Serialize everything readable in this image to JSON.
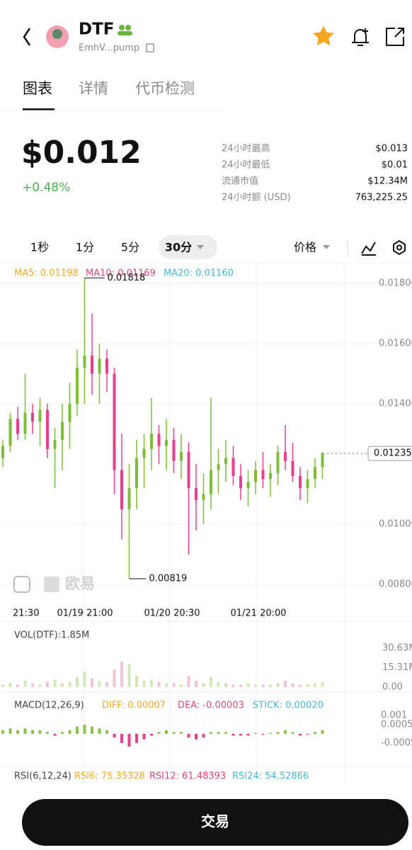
{
  "header": {
    "token": "DTF",
    "address": "EmhV...pump"
  },
  "tabs": [
    "图表",
    "详情",
    "代币检测"
  ],
  "price": {
    "value": "$0.012",
    "change": "+0.48%"
  },
  "stats": [
    {
      "label": "24小时最高",
      "value": "$0.013"
    },
    {
      "label": "24小时最低",
      "value": "$0.01"
    },
    {
      "label": "流通市值",
      "value": "$12.34M"
    },
    {
      "label": "24小时额 (USD)",
      "value": "763,225.25"
    }
  ],
  "intervals": [
    "1秒",
    "1分",
    "5分",
    "30分"
  ],
  "price_mode": "价格",
  "chart": {
    "type": "candlestick",
    "ma_legend": [
      "MA5: 0.01198",
      "MA10: 0.01169",
      "MA20: 0.01160"
    ],
    "ylim": [
      0.00746,
      0.01906
    ],
    "yticks": [
      {
        "value": 0.018,
        "label": "0.01800"
      },
      {
        "value": 0.016,
        "label": "0.01600"
      },
      {
        "value": 0.014,
        "label": "0.01400"
      },
      {
        "value": 0.01,
        "label": "0.01000"
      },
      {
        "value": 0.008,
        "label": "0.00800"
      }
    ],
    "x_labels": [
      "21:30",
      "01/19 21:00",
      "01/20 20:30",
      "01/21 20:00"
    ],
    "watermark": "欧易",
    "up_color": "#7cbd3a",
    "down_color": "#e93e8e",
    "candles": [
      [
        0.0122,
        0.0128,
        0.0119,
        0.0126
      ],
      [
        0.0126,
        0.0137,
        0.0124,
        0.0135
      ],
      [
        0.0135,
        0.0139,
        0.0128,
        0.013
      ],
      [
        0.013,
        0.015,
        0.0128,
        0.0137
      ],
      [
        0.0137,
        0.014,
        0.013,
        0.0134
      ],
      [
        0.0134,
        0.0142,
        0.0126,
        0.0138
      ],
      [
        0.0138,
        0.014,
        0.0122,
        0.0125
      ],
      [
        0.0125,
        0.0132,
        0.0112,
        0.0128
      ],
      [
        0.0128,
        0.014,
        0.0118,
        0.0134
      ],
      [
        0.0134,
        0.0147,
        0.0125,
        0.014
      ],
      [
        0.014,
        0.0158,
        0.0136,
        0.0152
      ],
      [
        0.0152,
        0.01818,
        0.014,
        0.0156
      ],
      [
        0.0156,
        0.017,
        0.0143,
        0.015
      ],
      [
        0.015,
        0.016,
        0.014,
        0.0155
      ],
      [
        0.0155,
        0.0158,
        0.0144,
        0.015
      ],
      [
        0.015,
        0.0152,
        0.011,
        0.0118
      ],
      [
        0.0118,
        0.013,
        0.0095,
        0.0105
      ],
      [
        0.0105,
        0.012,
        0.00819,
        0.0112
      ],
      [
        0.0112,
        0.0128,
        0.0105,
        0.0122
      ],
      [
        0.0122,
        0.013,
        0.0112,
        0.0125
      ],
      [
        0.0125,
        0.0142,
        0.0118,
        0.013
      ],
      [
        0.013,
        0.0133,
        0.012,
        0.0126
      ],
      [
        0.0126,
        0.0135,
        0.0118,
        0.0128
      ],
      [
        0.0128,
        0.0132,
        0.0117,
        0.0121
      ],
      [
        0.0121,
        0.013,
        0.0115,
        0.0124
      ],
      [
        0.0124,
        0.0127,
        0.009,
        0.0112
      ],
      [
        0.0112,
        0.012,
        0.0098,
        0.0108
      ],
      [
        0.0108,
        0.0117,
        0.01,
        0.011
      ],
      [
        0.011,
        0.0142,
        0.0105,
        0.0118
      ],
      [
        0.0118,
        0.0125,
        0.011,
        0.012
      ],
      [
        0.012,
        0.0128,
        0.0114,
        0.0122
      ],
      [
        0.0122,
        0.0126,
        0.0113,
        0.0116
      ],
      [
        0.0116,
        0.012,
        0.0108,
        0.0112
      ],
      [
        0.0112,
        0.0118,
        0.0106,
        0.0114
      ],
      [
        0.0114,
        0.0121,
        0.011,
        0.0118
      ],
      [
        0.0118,
        0.0124,
        0.0112,
        0.0115
      ],
      [
        0.0115,
        0.012,
        0.0109,
        0.0117
      ],
      [
        0.0117,
        0.0126,
        0.0113,
        0.0124
      ],
      [
        0.0124,
        0.0133,
        0.0118,
        0.0121
      ],
      [
        0.0121,
        0.0127,
        0.0114,
        0.0116
      ],
      [
        0.0116,
        0.0119,
        0.0108,
        0.0112
      ],
      [
        0.0112,
        0.0118,
        0.0107,
        0.0115
      ],
      [
        0.0115,
        0.0122,
        0.0112,
        0.0119
      ],
      [
        0.0119,
        0.0124,
        0.0115,
        0.01235
      ]
    ]
  },
  "volume": {
    "title": "VOL(DTF):1.85M",
    "ylim": [
      0,
      33
    ],
    "yticks": [
      {
        "value": 30.63,
        "label": "30.63M"
      },
      {
        "value": 15.31,
        "label": "15.31M"
      },
      {
        "value": 0,
        "label": "0.00"
      }
    ],
    "values": [
      2,
      3,
      2,
      5,
      3,
      2,
      4,
      6,
      3,
      4,
      8,
      12,
      7,
      5,
      4,
      14,
      20,
      18,
      9,
      5,
      6,
      4,
      3,
      3,
      2,
      9,
      5,
      3,
      8,
      4,
      3,
      2,
      2,
      3,
      2,
      2,
      2,
      3,
      5,
      3,
      2,
      2,
      3,
      4
    ]
  },
  "macd": {
    "title": "MACD(12,26,9)",
    "diff": "DIFF: 0.00007",
    "dea": "DEA: -0.00003",
    "stick": "STICK: 0.00020",
    "ylim": [
      -0.0012,
      0.0012
    ],
    "yticks": [
      0.001,
      0.0005,
      -0.0005
    ],
    "values": [
      0.0002,
      0.0003,
      0.0002,
      0.0003,
      0.0002,
      0.0002,
      0.0001,
      -0.0001,
      0.0001,
      0.0002,
      0.0004,
      0.0005,
      0.0004,
      0.0003,
      0.0002,
      -0.0002,
      -0.0005,
      -0.0007,
      -0.0005,
      -0.0003,
      -0.0001,
      0.0001,
      0.0002,
      0.0001,
      0.0001,
      -0.0002,
      -0.0003,
      -0.0002,
      0.0001,
      0.0001,
      0.0001,
      -0.0001,
      -0.0001,
      -0.0001,
      5e-05,
      -5e-05,
      5e-05,
      0.0001,
      0.0002,
      0.0001,
      -0.0001,
      -5e-05,
      0.0001,
      0.0002
    ]
  },
  "rsi": {
    "title": "RSI(6,12,24)",
    "rsi6": "RSI6: 75.35328",
    "rsi12": "RSI12: 61.48393",
    "rsi24": "RSI24: 54.52866"
  },
  "button": "交易"
}
